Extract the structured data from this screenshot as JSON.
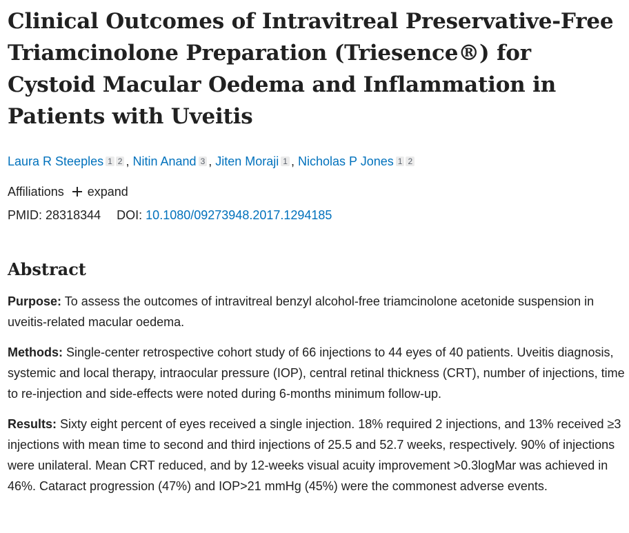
{
  "article": {
    "title": "Clinical Outcomes of Intravitreal Preservative-Free Triamcinolone Preparation (Triesence®) for Cystoid Macular Oedema and Inflammation in Patients with Uveitis",
    "authors": [
      {
        "name": "Laura R Steeples",
        "affiliations": [
          "1",
          "2"
        ]
      },
      {
        "name": "Nitin Anand",
        "affiliations": [
          "3"
        ]
      },
      {
        "name": "Jiten Moraji",
        "affiliations": [
          "1"
        ]
      },
      {
        "name": "Nicholas P Jones",
        "affiliations": [
          "1",
          "2"
        ]
      }
    ],
    "affiliations_label": "Affiliations",
    "expand_label": "expand",
    "pmid_label": "PMID:",
    "pmid": "28318344",
    "doi_label": "DOI:",
    "doi": "10.1080/09273948.2017.1294185"
  },
  "abstract": {
    "heading": "Abstract",
    "sections": [
      {
        "label": "Purpose:",
        "text": "To assess the outcomes of intravitreal benzyl alcohol-free triamcinolone acetonide suspension in uveitis-related macular oedema."
      },
      {
        "label": "Methods:",
        "text": "Single-center retrospective cohort study of 66 injections to 44 eyes of 40 patients. Uveitis diagnosis, systemic and local therapy, intraocular pressure (IOP), central retinal thickness (CRT), number of injections, time to re-injection and side-effects were noted during 6-months minimum follow-up."
      },
      {
        "label": "Results:",
        "text": "Sixty eight percent of eyes received a single injection. 18% required 2 injections, and 13% received ≥3 injections with mean time to second and third injections of 25.5 and 52.7 weeks, respectively. 90% of injections were unilateral. Mean CRT reduced, and by 12-weeks visual acuity improvement >0.3logMar was achieved in 46%. Cataract progression (47%) and IOP>21 mmHg (45%) were the commonest adverse events."
      }
    ]
  },
  "colors": {
    "link": "#0071bc",
    "text": "#212121",
    "badge_bg": "#ebebeb"
  }
}
